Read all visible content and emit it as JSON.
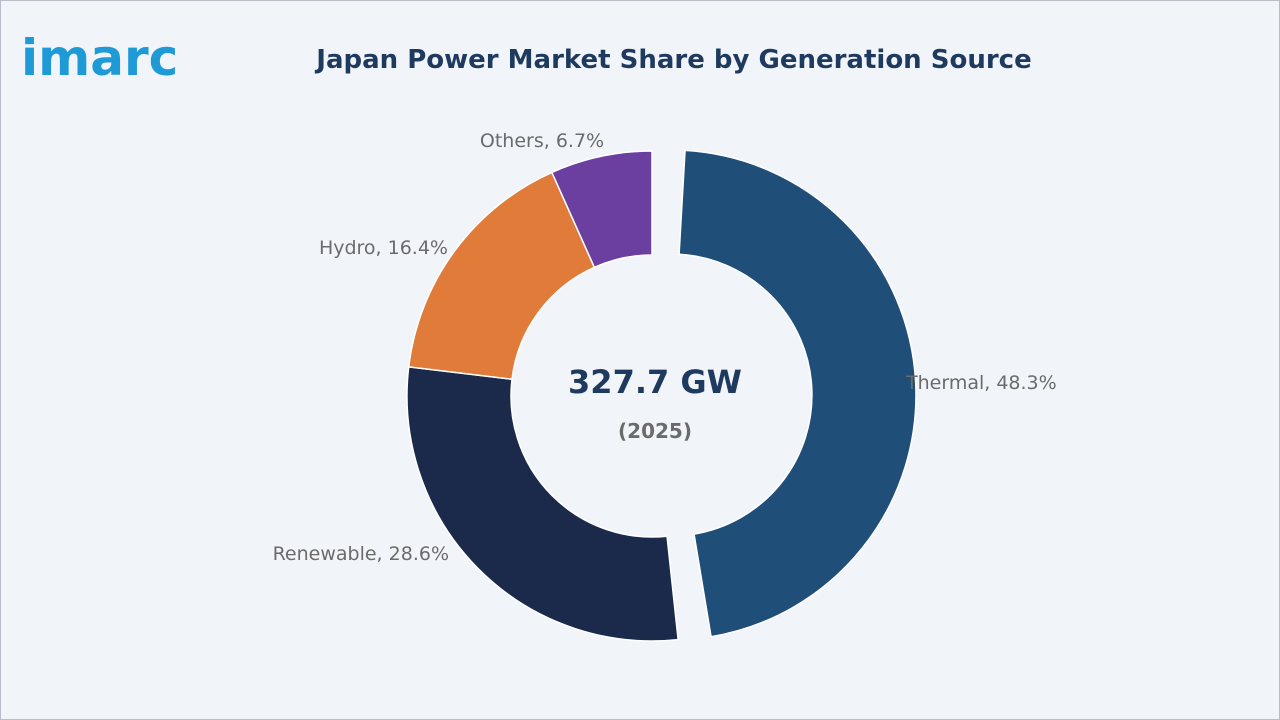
{
  "brand": {
    "logo_text": "imarc",
    "logo_color": "#1e9bd7"
  },
  "chart_data": {
    "type": "pie",
    "title": "Japan Power Market Share by Generation Source",
    "unit": "%",
    "center_value": "327.7 GW",
    "center_subtitle": "(2025)",
    "categories": [
      "Thermal",
      "Renewable",
      "Hydro",
      "Others"
    ],
    "values": [
      48.3,
      28.6,
      16.4,
      6.7
    ],
    "labels": [
      "Thermal, 48.3%",
      "Renewable, 28.6%",
      "Hydro, 16.4%",
      "Others, 6.7%"
    ],
    "colors": [
      "#1f4e79",
      "#1b2a4a",
      "#e07b39",
      "#6a3fa0"
    ],
    "exploded": [
      "Thermal"
    ],
    "donut": true,
    "legend": "none"
  }
}
